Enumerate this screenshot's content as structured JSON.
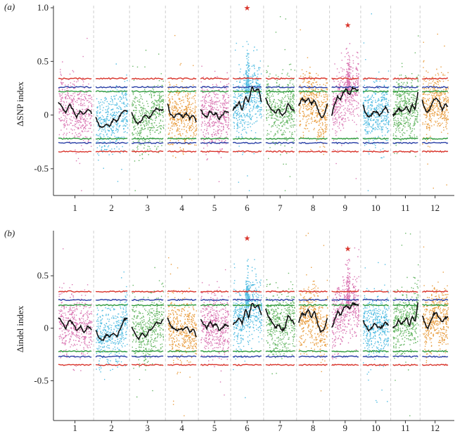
{
  "chart_data": [
    {
      "panel_label": "(a)",
      "type": "scatter",
      "ylabel": "ΔSNP index",
      "xlabel": "",
      "categories": [
        "1",
        "2",
        "3",
        "4",
        "5",
        "6",
        "7",
        "8",
        "9",
        "10",
        "11",
        "12"
      ],
      "ylim": [
        -0.75,
        1.02
      ],
      "yticks": [
        -0.5,
        0,
        0.5,
        1.0
      ],
      "ytick_labels": [
        "-0.5",
        "0",
        "0.5",
        "1.0"
      ],
      "colors": [
        "#d45fa6",
        "#36b2dd",
        "#4eaa4b",
        "#e58e22",
        "#d45fa6",
        "#36b2dd",
        "#4eaa4b",
        "#e58e22",
        "#d45fa6",
        "#36b2dd",
        "#4eaa4b",
        "#e58e22"
      ],
      "threshold_lines": {
        "p99_color": "#d9342b",
        "p95_color": "#2a3fa6",
        "p90_color": "#2f9a3d",
        "p99": 0.34,
        "p95": 0.26,
        "p90": 0.22
      },
      "sliding_window": [
        [
          0.12,
          0.08,
          0.02,
          0.1,
          0.05,
          -0.02,
          0.04,
          0.0,
          0.06,
          0.02
        ],
        [
          -0.02,
          -0.1,
          -0.12,
          -0.08,
          -0.1,
          -0.04,
          -0.06,
          0.0,
          0.05,
          0.04
        ],
        [
          0.02,
          -0.06,
          -0.08,
          -0.04,
          0.0,
          -0.03,
          0.02,
          0.06,
          0.04,
          0.05
        ],
        [
          0.1,
          0.0,
          -0.02,
          0.02,
          0.0,
          -0.02,
          0.02,
          -0.04,
          0.0,
          -0.06
        ],
        [
          0.06,
          0.0,
          -0.02,
          0.04,
          0.0,
          0.02,
          -0.04,
          0.0,
          0.04,
          0.02
        ],
        [
          0.05,
          0.08,
          0.12,
          0.04,
          0.18,
          0.12,
          0.26,
          0.22,
          0.25,
          0.12
        ],
        [
          0.16,
          0.08,
          0.04,
          0.02,
          0.06,
          0.0,
          0.02,
          0.1,
          0.06,
          0.04
        ],
        [
          0.08,
          0.16,
          0.12,
          0.16,
          0.1,
          0.14,
          0.05,
          -0.02,
          0.0,
          0.1
        ],
        [
          0.0,
          0.1,
          0.18,
          0.14,
          0.22,
          0.24,
          0.18,
          0.25,
          0.24,
          0.23
        ],
        [
          0.1,
          0.02,
          -0.02,
          0.0,
          0.04,
          0.02,
          0.0,
          0.04,
          0.08,
          0.02
        ],
        [
          0.0,
          0.02,
          0.06,
          0.04,
          0.05,
          0.08,
          0.02,
          0.1,
          0.05,
          0.22
        ],
        [
          0.14,
          0.05,
          0.02,
          0.08,
          0.14,
          0.15,
          0.12,
          0.05,
          0.1,
          0.08
        ]
      ],
      "peaks": [
        {
          "chromosome": "6",
          "position": 0.5,
          "y": 1.0,
          "marker": "★"
        },
        {
          "chromosome": "9",
          "position": 0.6,
          "y": 0.84,
          "marker": "★"
        }
      ]
    },
    {
      "panel_label": "(b)",
      "type": "scatter",
      "ylabel": "Δindel index",
      "xlabel": "",
      "categories": [
        "1",
        "2",
        "3",
        "4",
        "5",
        "6",
        "7",
        "8",
        "9",
        "10",
        "11",
        "12"
      ],
      "ylim": [
        -0.88,
        0.93
      ],
      "yticks": [
        -0.5,
        0,
        0.5
      ],
      "ytick_labels": [
        "-0.5",
        "0",
        "0.5"
      ],
      "colors": [
        "#d45fa6",
        "#36b2dd",
        "#4eaa4b",
        "#e58e22",
        "#d45fa6",
        "#36b2dd",
        "#4eaa4b",
        "#e58e22",
        "#d45fa6",
        "#36b2dd",
        "#4eaa4b",
        "#e58e22"
      ],
      "threshold_lines": {
        "p99_color": "#d9342b",
        "p95_color": "#2a3fa6",
        "p90_color": "#2f9a3d",
        "p99": 0.35,
        "p95": 0.27,
        "p90": 0.22
      },
      "sliding_window": [
        [
          0.1,
          0.06,
          0.0,
          0.08,
          0.04,
          -0.02,
          0.02,
          -0.04,
          0.02,
          -0.02
        ],
        [
          -0.02,
          -0.1,
          -0.12,
          -0.06,
          -0.08,
          -0.04,
          -0.08,
          0.0,
          0.08,
          0.1
        ],
        [
          0.02,
          -0.06,
          -0.1,
          -0.04,
          -0.08,
          -0.02,
          0.0,
          0.06,
          0.04,
          0.08
        ],
        [
          0.1,
          0.02,
          0.0,
          -0.02,
          0.0,
          -0.02,
          0.02,
          -0.04,
          0.0,
          -0.08
        ],
        [
          0.08,
          0.04,
          0.0,
          0.06,
          0.02,
          0.04,
          -0.02,
          0.0,
          0.04,
          0.02
        ],
        [
          0.04,
          0.06,
          0.1,
          0.04,
          0.18,
          0.1,
          0.24,
          0.2,
          0.22,
          0.12
        ],
        [
          0.18,
          0.1,
          0.06,
          0.0,
          0.04,
          -0.02,
          0.0,
          0.12,
          0.08,
          0.04
        ],
        [
          0.06,
          0.14,
          0.12,
          0.18,
          0.1,
          0.16,
          0.04,
          -0.04,
          0.0,
          0.1
        ],
        [
          0.0,
          0.08,
          0.16,
          0.12,
          0.2,
          0.22,
          0.18,
          0.24,
          0.23,
          0.22
        ],
        [
          0.08,
          0.02,
          -0.02,
          0.0,
          0.04,
          0.02,
          0.0,
          0.02,
          0.06,
          0.02
        ],
        [
          0.0,
          0.02,
          0.08,
          0.04,
          0.06,
          0.1,
          0.02,
          0.12,
          0.06,
          0.24
        ],
        [
          0.12,
          0.04,
          0.0,
          0.06,
          0.14,
          0.14,
          0.1,
          0.06,
          0.1,
          0.1
        ]
      ],
      "peaks": [
        {
          "chromosome": "6",
          "position": 0.5,
          "y": 0.86,
          "marker": "★"
        },
        {
          "chromosome": "9",
          "position": 0.6,
          "y": 0.76,
          "marker": "★"
        }
      ]
    }
  ]
}
